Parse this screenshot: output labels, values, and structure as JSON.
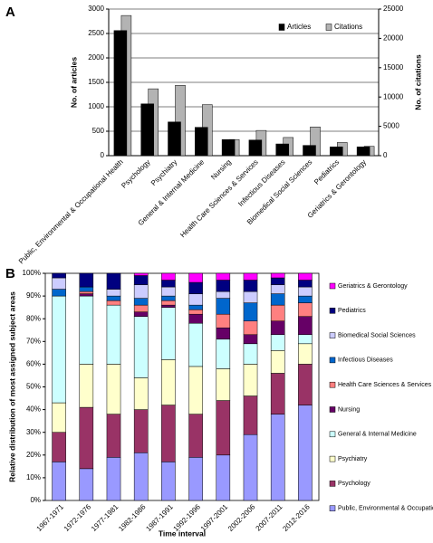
{
  "chart_data": [
    {
      "type": "bar",
      "panel_label": "A",
      "categories": [
        "Public, Environmental & Occupational Health",
        "Psychology",
        "Psychiatry",
        "General & Internal Medicine",
        "Nursing",
        "Health Care Sciences & Services",
        "Infectious Diseases",
        "Biomedical Social Sciences",
        "Pediatrics",
        "Geriatrics & Gerontology"
      ],
      "y_label": "No. of articles",
      "y2_label": "No. of citations",
      "ylim": [
        0,
        3000
      ],
      "yticks": [
        0,
        500,
        1000,
        1500,
        2000,
        2500,
        3000
      ],
      "y2lim": [
        0,
        25000
      ],
      "y2ticks": [
        0,
        5000,
        10000,
        15000,
        20000,
        25000
      ],
      "grid": true,
      "legend": "upper right",
      "series": [
        {
          "name": "Articles",
          "color": "#000000",
          "values": [
            2560,
            1060,
            690,
            580,
            330,
            320,
            240,
            210,
            180,
            180
          ]
        },
        {
          "name": "Citations",
          "color": "#b3b3b3",
          "axis": "y2",
          "values": [
            23900,
            11400,
            12000,
            8700,
            2750,
            4300,
            3100,
            4900,
            2250,
            1600
          ]
        }
      ]
    },
    {
      "type": "stacked_bar",
      "panel_label": "B",
      "categories": [
        "1967-1971",
        "1972-1976",
        "1977-1981",
        "1982-1986",
        "1987-1991",
        "1992-1996",
        "1997-2001",
        "2002-2006",
        "2007-2011",
        "2012-2016"
      ],
      "x_label": "Time interval",
      "y_label": "Relative distribution of most assigned subject areas",
      "ylim": [
        0,
        100
      ],
      "yticks": [
        {
          "value": 0,
          "label": "0%"
        },
        {
          "value": 10,
          "label": "10%"
        },
        {
          "value": 20,
          "label": "20%"
        },
        {
          "value": 30,
          "label": "30%"
        },
        {
          "value": 40,
          "label": "40%"
        },
        {
          "value": 50,
          "label": "50%"
        },
        {
          "value": 60,
          "label": "60%"
        },
        {
          "value": 70,
          "label": "70%"
        },
        {
          "value": 80,
          "label": "80%"
        },
        {
          "value": 90,
          "label": "90%"
        },
        {
          "value": 100,
          "label": "100%"
        }
      ],
      "legend": "right",
      "series": [
        {
          "name": "Public, Environmental & Occupational",
          "color": "#9999ff",
          "values": [
            17,
            14,
            19,
            21,
            17,
            19,
            20,
            29,
            38,
            42
          ]
        },
        {
          "name": "Psychology",
          "color": "#993366",
          "values": [
            13,
            27,
            19,
            19,
            25,
            19,
            24,
            17,
            18,
            18
          ]
        },
        {
          "name": "Psychiatry",
          "color": "#ffffcc",
          "values": [
            13,
            19,
            22,
            14,
            20,
            21,
            14,
            14,
            10,
            9
          ]
        },
        {
          "name": "General & Internal Medicine",
          "color": "#ccffff",
          "values": [
            47,
            30,
            26,
            27,
            23,
            19,
            13,
            9,
            7,
            4
          ]
        },
        {
          "name": "Nursing",
          "color": "#660066",
          "values": [
            0,
            1,
            0,
            2,
            1,
            4,
            5,
            4,
            6,
            8
          ]
        },
        {
          "name": "Health Care Sciences & Services",
          "color": "#ff8080",
          "values": [
            0,
            1,
            2,
            3,
            2,
            2,
            6,
            6,
            7,
            6
          ]
        },
        {
          "name": "Infectious Diseases",
          "color": "#0066cc",
          "values": [
            3,
            2,
            2,
            3,
            2,
            2,
            7,
            8,
            5,
            3
          ]
        },
        {
          "name": "Biomedical Social Sciences",
          "color": "#ccccff",
          "values": [
            5,
            0,
            3,
            6,
            4,
            5,
            3,
            5,
            4,
            4
          ]
        },
        {
          "name": "Pediatrics",
          "color": "#000080",
          "values": [
            2,
            6,
            7,
            4,
            3,
            5,
            5,
            5,
            3,
            3
          ]
        },
        {
          "name": "Geriatrics & Gerontology",
          "color": "#ff00ff",
          "values": [
            0,
            0,
            0,
            1,
            3,
            4,
            3,
            3,
            2,
            3
          ]
        }
      ]
    }
  ]
}
